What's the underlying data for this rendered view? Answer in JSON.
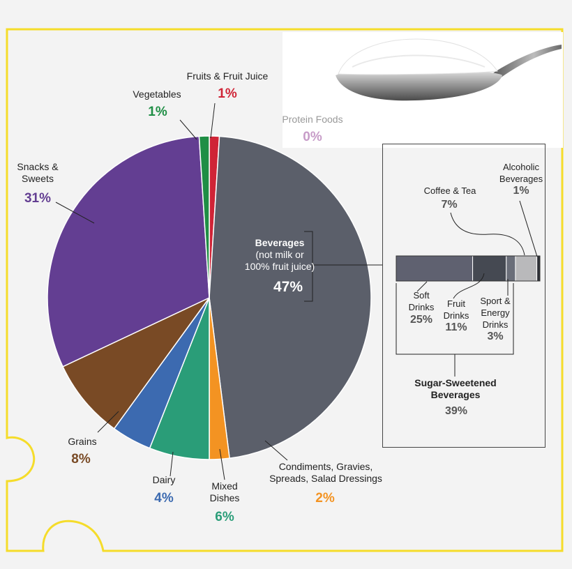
{
  "chart_data": [
    {
      "type": "pie",
      "unit": "%",
      "slices": [
        {
          "name": "Fruits & Fruit Juice",
          "value": 1,
          "label": "1%",
          "color": "#cf2436"
        },
        {
          "name": "Protein Foods",
          "value": 0,
          "label": "0%",
          "color": "#c79cc8"
        },
        {
          "name": "Beverages (not milk or 100% fruit juice)",
          "value": 47,
          "label": "47%",
          "color": "#5b5f6a"
        },
        {
          "name": "Condiments, Gravies, Spreads, Salad Dressings",
          "value": 2,
          "label": "2%",
          "color": "#f39322"
        },
        {
          "name": "Mixed Dishes",
          "value": 6,
          "label": "6%",
          "color": "#2a9d78"
        },
        {
          "name": "Dairy",
          "value": 4,
          "label": "4%",
          "color": "#3c6ab0"
        },
        {
          "name": "Grains",
          "value": 8,
          "label": "8%",
          "color": "#794a25"
        },
        {
          "name": "Snacks & Sweets",
          "value": 31,
          "label": "31%",
          "color": "#633e92"
        },
        {
          "name": "Vegetables",
          "value": 1,
          "label": "1%",
          "color": "#1f8e45"
        }
      ]
    },
    {
      "type": "bar",
      "orientation": "horizontal-stacked",
      "unit": "%",
      "segments": [
        {
          "name": "Soft Drinks",
          "value": 25,
          "label": "25%",
          "color": "#5f6170"
        },
        {
          "name": "Fruit Drinks",
          "value": 11,
          "label": "11%",
          "color": "#454952"
        },
        {
          "name": "Sport & Energy Drinks",
          "value": 3,
          "label": "3%",
          "color": "#6a6e79"
        },
        {
          "name": "Coffee & Tea",
          "value": 7,
          "label": "7%",
          "color": "#b9b9bb"
        },
        {
          "name": "Alcoholic Beverages",
          "value": 1,
          "label": "1%",
          "color": "#2e3036"
        }
      ],
      "group": {
        "name": "Sugar-Sweetened Beverages",
        "label": "39%"
      }
    }
  ],
  "labels": {
    "fruits": {
      "line1": "Fruits & Fruit Juice",
      "pct": "1%"
    },
    "vegetables": {
      "line1": "Vegetables",
      "pct": "1%"
    },
    "protein": {
      "line1": "Protein Foods",
      "pct": "0%"
    },
    "snacks": {
      "line1": "Snacks &",
      "line2": "Sweets",
      "pct": "31%"
    },
    "beverages": {
      "line1": "Beverages",
      "line2": "(not milk or",
      "line3": "100% fruit juice)",
      "pct": "47%"
    },
    "grains": {
      "line1": "Grains",
      "pct": "8%"
    },
    "dairy": {
      "line1": "Dairy",
      "pct": "4%"
    },
    "mixed": {
      "line1": "Mixed",
      "line2": "Dishes",
      "pct": "6%"
    },
    "condiments": {
      "line1": "Condiments, Gravies,",
      "line2": "Spreads, Salad Dressings",
      "pct": "2%"
    },
    "coffee": {
      "line1": "Coffee & Tea",
      "pct": "7%"
    },
    "alcohol": {
      "line1": "Alcoholic",
      "line2": "Beverages",
      "pct": "1%"
    },
    "soft": {
      "line1": "Soft",
      "line2": "Drinks",
      "pct": "25%"
    },
    "fruitdrinks": {
      "line1": "Fruit",
      "line2": "Drinks",
      "pct": "11%"
    },
    "sport": {
      "line1": "Sport &",
      "line2": "Energy",
      "line3": "Drinks",
      "pct": "3%"
    },
    "ssb": {
      "line1": "Sugar-Sweetened",
      "line2": "Beverages",
      "pct": "39%"
    }
  },
  "colors": {
    "frame": "#f5dc2a",
    "ink": "#222222",
    "panel_border": "#444444"
  }
}
